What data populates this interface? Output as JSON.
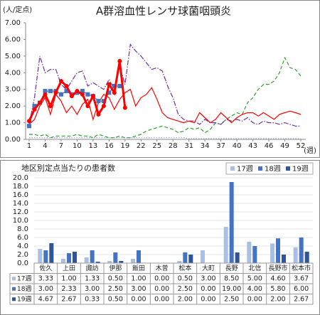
{
  "chart_data": [
    {
      "type": "line",
      "title": "A群溶血性レンサ球菌咽頭炎",
      "ylabel": "(人/定点)",
      "xlabel": "(週)",
      "x": [
        1,
        2,
        3,
        4,
        5,
        6,
        7,
        8,
        9,
        10,
        11,
        12,
        13,
        14,
        15,
        16,
        17,
        18,
        19,
        20,
        21,
        22,
        23,
        24,
        25,
        26,
        27,
        28,
        29,
        30,
        31,
        32,
        33,
        34,
        35,
        36,
        37,
        38,
        39,
        40,
        41,
        42,
        43,
        44,
        45,
        46,
        47,
        48,
        49,
        50,
        51,
        52
      ],
      "xlim": [
        1,
        52
      ],
      "xticks": [
        1,
        4,
        7,
        10,
        13,
        16,
        19,
        22,
        25,
        28,
        31,
        34,
        37,
        40,
        43,
        46,
        49,
        52
      ],
      "ylim": [
        0,
        7
      ],
      "yticks": [
        {
          "value": 0,
          "label": "0.00"
        },
        {
          "value": 1,
          "label": "1.00"
        },
        {
          "value": 2,
          "label": "2.00"
        },
        {
          "value": 3,
          "label": "3.00"
        },
        {
          "value": 4,
          "label": "4.00"
        },
        {
          "value": 5,
          "label": "5.00"
        },
        {
          "value": 6,
          "label": "6.00"
        },
        {
          "value": 7,
          "label": "7.00"
        }
      ],
      "series": [
        {
          "color": "#8faadc",
          "line_style": "dotted",
          "values": [
            0.1,
            0.1,
            0.1,
            0.1,
            0.1,
            0.1,
            0.1,
            0.1,
            0.1,
            0.1,
            0.1,
            0.1,
            0.1,
            0.1,
            0.1,
            0.1,
            0.1,
            0.1,
            0.1,
            0.1,
            0.1,
            0.1,
            0.1,
            0.1,
            0.1,
            0.1,
            0.1,
            0.1,
            0.1,
            0.1,
            0.05,
            0.05,
            0.05,
            0.05,
            0.05,
            0.05,
            0.05,
            0.05,
            0.05,
            0.05,
            0.05,
            0.05,
            0.05,
            0.05,
            0.05,
            0.05,
            0.05,
            0.05,
            0.05,
            0.05,
            0.05,
            0.05
          ]
        },
        {
          "color": "#2e9e2e",
          "line_style": "dashed",
          "values": [
            0.3,
            0.3,
            0.2,
            0.3,
            0.1,
            0.2,
            0.2,
            0.2,
            0.2,
            0.3,
            0.2,
            0.2,
            0.1,
            0.3,
            0.2,
            0.1,
            0.1,
            0.2,
            0.1,
            0.1,
            0.2,
            0.3,
            0.5,
            0.6,
            0.7,
            0.8,
            0.7,
            0.6,
            0.4,
            0.5,
            0.7,
            0.6,
            0.7,
            0.4,
            0.6,
            1.0,
            0.9,
            1.2,
            1.4,
            1.6,
            1.5,
            2.2,
            2.5,
            3.0,
            3.3,
            3.3,
            3.5,
            4.0,
            4.9,
            4.3,
            4.2,
            3.8
          ]
        },
        {
          "color": "#7030a0",
          "line_style": "dashdot",
          "values": [
            0.9,
            2.5,
            5.0,
            4.0,
            4.2,
            4.2,
            3.3,
            3.0,
            3.5,
            4.0,
            4.1,
            3.2,
            3.4,
            3.2,
            3.0,
            3.6,
            3.0,
            4.4,
            3.3,
            5.7,
            5.3,
            5.0,
            4.6,
            4.2,
            4.3,
            4.1,
            3.2,
            2.5,
            1.5,
            1.2,
            1.1,
            1.1,
            0.9,
            1.2,
            1.0,
            1.0,
            0.9,
            1.2,
            1.1,
            1.2,
            1.1,
            1.3,
            1.0,
            0.9,
            1.1,
            1.0,
            1.0,
            0.9,
            1.0,
            0.9,
            0.8,
            0.8
          ]
        },
        {
          "color": "#ff0000",
          "line_style": "solid",
          "values": [
            0.9,
            1.2,
            2.0,
            2.5,
            1.5,
            2.7,
            2.3,
            1.6,
            2.0,
            1.5,
            2.1,
            2.4,
            1.2,
            2.2,
            2.7,
            2.5,
            1.8,
            2.4,
            2.8,
            3.0,
            2.0,
            2.5,
            2.7,
            3.1,
            2.4,
            1.6,
            1.3,
            1.2,
            1.1,
            1.0,
            1.1,
            1.0,
            1.6,
            1.3,
            1.0,
            1.2,
            1.6,
            1.3,
            1.0,
            1.3,
            1.5,
            1.6,
            1.6,
            1.4,
            1.6,
            1.4,
            1.2,
            1.5,
            1.6,
            1.7,
            1.6,
            1.5
          ]
        },
        {
          "color": "#4472c4",
          "line_style": "solid",
          "marker": "square",
          "values": [
            0.8,
            2.0,
            2.2,
            2.9,
            2.9,
            2.9,
            2.7,
            2.9,
            2.7,
            2.8,
            2.9,
            2.7,
            2.6,
            2.3,
            2.3,
            2.8,
            3.2,
            3.2,
            null,
            null,
            null,
            null,
            null,
            null,
            null,
            null,
            null,
            null,
            null,
            null,
            null,
            null,
            null,
            null,
            null,
            null,
            null,
            null,
            null,
            null,
            null,
            null,
            null,
            null,
            null,
            null,
            null,
            null,
            null,
            null,
            null,
            null
          ]
        },
        {
          "color": "#ff0000",
          "line_style": "solid",
          "marker": "circle",
          "bold": true,
          "values": [
            1.1,
            1.8,
            2.2,
            2.7,
            2.0,
            2.8,
            3.5,
            3.2,
            2.6,
            2.9,
            2.7,
            2.0,
            2.6,
            1.5,
            2.0,
            3.3,
            2.8,
            4.7,
            1.9,
            null,
            null,
            null,
            null,
            null,
            null,
            null,
            null,
            null,
            null,
            null,
            null,
            null,
            null,
            null,
            null,
            null,
            null,
            null,
            null,
            null,
            null,
            null,
            null,
            null,
            null,
            null,
            null,
            null,
            null,
            null,
            null,
            null
          ]
        }
      ]
    },
    {
      "type": "bar",
      "title": "地区別定点当たりの患者数",
      "categories": [
        "佐久",
        "上田",
        "諏訪",
        "伊那",
        "飯田",
        "木曽",
        "松本",
        "大町",
        "長野",
        "北信",
        "長野市",
        "松本市"
      ],
      "ylim": [
        0,
        20
      ],
      "yticks": [
        {
          "value": 0,
          "label": "0.0"
        },
        {
          "value": 2,
          "label": "2.0"
        },
        {
          "value": 4,
          "label": "4.0"
        },
        {
          "value": 6,
          "label": "6.0"
        },
        {
          "value": 8,
          "label": "8.0"
        },
        {
          "value": 10,
          "label": "10.0"
        },
        {
          "value": 12,
          "label": "12.0"
        },
        {
          "value": 14,
          "label": "14.0"
        },
        {
          "value": 16,
          "label": "16.0"
        },
        {
          "value": 18,
          "label": "18.0"
        },
        {
          "value": 20,
          "label": "20.0"
        }
      ],
      "grid": true,
      "series": [
        {
          "name": "17週",
          "color": "#a9bfe3",
          "values": [
            3.33,
            1,
            1.33,
            0.5,
            1,
            0,
            0.5,
            3,
            8.5,
            5,
            4.6,
            3.67
          ],
          "value_labels": [
            "3.33",
            "1.00",
            "1.33",
            "0.50",
            "1.00",
            "0.00",
            "0.50",
            "3.00",
            "8.50",
            "5.00",
            "4.60",
            "3.67"
          ]
        },
        {
          "name": "18週",
          "color": "#4472c4",
          "values": [
            3,
            2.33,
            3,
            2.5,
            3,
            0,
            2.5,
            0,
            19,
            4,
            5.8,
            6
          ],
          "value_labels": [
            "3.00",
            "2.33",
            "3.00",
            "2.50",
            "3.00",
            "0.00",
            "2.50",
            "0.00",
            "19.00",
            "4.00",
            "5.80",
            "6.00"
          ]
        },
        {
          "name": "19週",
          "color": "#2f5597",
          "values": [
            4.67,
            2.67,
            0.33,
            0.5,
            0,
            0,
            2,
            0,
            2.5,
            0,
            2,
            2.67
          ],
          "value_labels": [
            "4.67",
            "2.67",
            "0.33",
            "0.50",
            "0.00",
            "0.00",
            "2.00",
            "0.00",
            "2.50",
            "0.00",
            "2.00",
            "2.67"
          ]
        }
      ]
    }
  ]
}
